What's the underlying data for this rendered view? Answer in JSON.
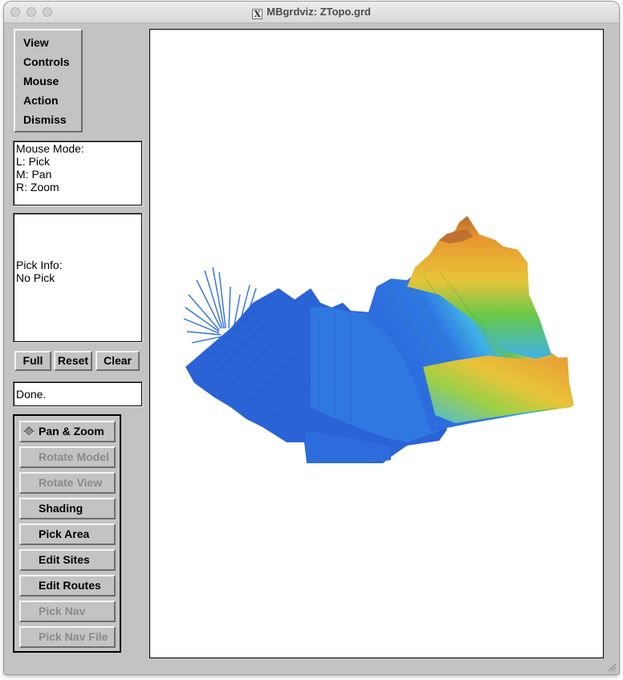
{
  "window": {
    "title": "MBgrdviz: ZTopo.grd",
    "x_icon_label": "X"
  },
  "menu": {
    "items": [
      {
        "label": "View"
      },
      {
        "label": "Controls"
      },
      {
        "label": "Mouse"
      },
      {
        "label": "Action"
      },
      {
        "label": "Dismiss"
      }
    ]
  },
  "mouse_mode": {
    "heading": "Mouse Mode:",
    "left": "L: Pick",
    "middle": "M: Pan",
    "right": "R: Zoom"
  },
  "pick_info": {
    "heading": "Pick Info:",
    "value": "No Pick"
  },
  "view_buttons": {
    "full": "Full",
    "reset": "Reset",
    "clear": "Clear"
  },
  "status": {
    "text": "Done."
  },
  "mode_panel": {
    "items": [
      {
        "label": "Pan & Zoom",
        "selected": true,
        "enabled": true
      },
      {
        "label": "Rotate Model",
        "selected": false,
        "enabled": false
      },
      {
        "label": "Rotate View",
        "selected": false,
        "enabled": false
      },
      {
        "label": "Shading",
        "selected": false,
        "enabled": true
      },
      {
        "label": "Pick Area",
        "selected": false,
        "enabled": true
      },
      {
        "label": "Edit Sites",
        "selected": false,
        "enabled": true
      },
      {
        "label": "Edit Routes",
        "selected": false,
        "enabled": true
      },
      {
        "label": "Pick Nav",
        "selected": false,
        "enabled": false
      },
      {
        "label": "Pick Nav File",
        "selected": false,
        "enabled": false
      }
    ]
  },
  "colors": {
    "deep": "#2f6fe0",
    "mid": "#3fb0e8",
    "green": "#66c84a",
    "yellow": "#e8c43a",
    "orange": "#e89a32",
    "peak": "#b86a2a"
  }
}
